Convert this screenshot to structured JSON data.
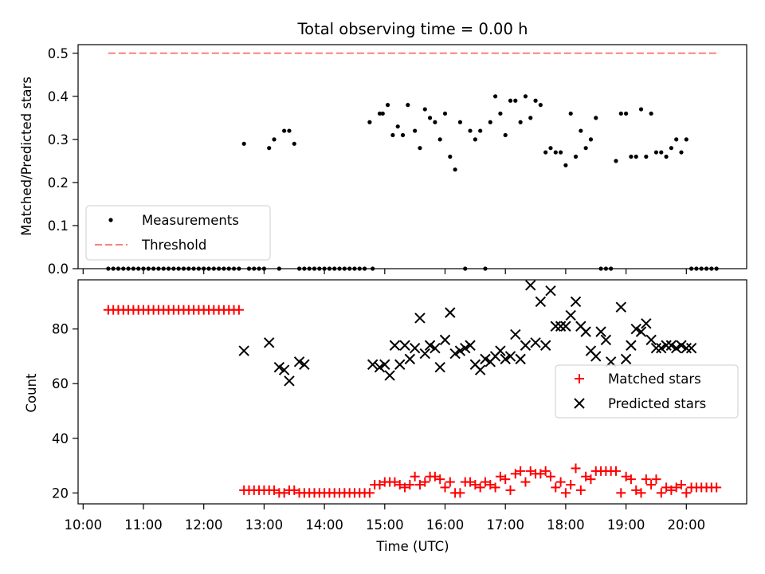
{
  "chart_data": [
    {
      "type": "scatter",
      "title": "Total observing time = 0.00 h",
      "ylabel": "Matched/Predicted stars",
      "ylim": [
        0,
        0.52
      ],
      "yticks": [
        "0.0",
        "0.1",
        "0.2",
        "0.3",
        "0.4",
        "0.5"
      ],
      "legend_position": "lower-left",
      "threshold": {
        "name": "Threshold",
        "value": 0.5,
        "x_start": "10:25",
        "x_end": "20:30",
        "color": "#ff7f7f",
        "style": "dashed"
      },
      "series": [
        {
          "name": "Measurements",
          "color": "#000000",
          "x": [
            "10:25",
            "10:30",
            "10:35",
            "10:40",
            "10:45",
            "10:50",
            "10:55",
            "11:00",
            "11:05",
            "11:10",
            "11:15",
            "11:20",
            "11:25",
            "11:30",
            "11:35",
            "11:40",
            "11:45",
            "11:50",
            "11:55",
            "12:00",
            "12:05",
            "12:10",
            "12:15",
            "12:20",
            "12:25",
            "12:30",
            "12:35",
            "12:40",
            "12:45",
            "12:50",
            "12:55",
            "13:00",
            "13:05",
            "13:10",
            "13:15",
            "13:20",
            "13:25",
            "13:30",
            "13:35",
            "13:40",
            "13:45",
            "13:50",
            "13:55",
            "14:00",
            "14:05",
            "14:10",
            "14:15",
            "14:20",
            "14:25",
            "14:30",
            "14:35",
            "14:40",
            "14:45",
            "14:48",
            "14:55",
            "14:58",
            "15:03",
            "15:08",
            "15:13",
            "15:18",
            "15:23",
            "15:30",
            "15:35",
            "15:40",
            "15:45",
            "15:50",
            "15:55",
            "16:00",
            "16:05",
            "16:10",
            "16:15",
            "16:20",
            "16:25",
            "16:30",
            "16:35",
            "16:40",
            "16:45",
            "16:50",
            "16:55",
            "17:00",
            "17:05",
            "17:10",
            "17:15",
            "17:20",
            "17:25",
            "17:30",
            "17:35",
            "17:40",
            "17:45",
            "17:50",
            "17:55",
            "18:00",
            "18:05",
            "18:10",
            "18:15",
            "18:20",
            "18:25",
            "18:30",
            "18:35",
            "18:40",
            "18:45",
            "18:50",
            "18:55",
            "19:00",
            "19:05",
            "19:10",
            "19:15",
            "19:20",
            "19:25",
            "19:30",
            "19:35",
            "19:40",
            "19:45",
            "19:50",
            "19:55",
            "20:00",
            "20:05",
            "20:10",
            "20:15",
            "20:20",
            "20:25",
            "20:30"
          ],
          "y": [
            0,
            0,
            0,
            0,
            0,
            0,
            0,
            0,
            0,
            0,
            0,
            0,
            0,
            0,
            0,
            0,
            0,
            0,
            0,
            0,
            0,
            0,
            0,
            0,
            0,
            0,
            0,
            0.29,
            0,
            0,
            0,
            0,
            0.28,
            0.3,
            0,
            0.32,
            0.32,
            0.29,
            0,
            0,
            0,
            0,
            0,
            0,
            0,
            0,
            0,
            0,
            0,
            0,
            0,
            0,
            0.34,
            0,
            0.36,
            0.36,
            0.38,
            0.31,
            0.33,
            0.31,
            0.38,
            0.32,
            0.28,
            0.37,
            0.35,
            0.34,
            0.3,
            0.36,
            0.26,
            0.23,
            0.34,
            0,
            0.32,
            0.3,
            0.32,
            0,
            0.34,
            0.4,
            0.36,
            0.31,
            0.39,
            0.39,
            0.34,
            0.4,
            0.35,
            0.39,
            0.38,
            0.27,
            0.28,
            0.27,
            0.27,
            0.24,
            0.36,
            0.26,
            0.32,
            0.28,
            0.3,
            0.35,
            0,
            0,
            0,
            0.25,
            0.36,
            0.36,
            0.26,
            0.26,
            0.37,
            0.26,
            0.36,
            0.27,
            0.27,
            0.26,
            0.28,
            0.3,
            0.27,
            0.3,
            0,
            0,
            0,
            0,
            0,
            0
          ]
        }
      ]
    },
    {
      "type": "scatter",
      "title": "",
      "xlabel": "Time (UTC)",
      "ylabel": "Count",
      "ylim": [
        16,
        98
      ],
      "yticks": [
        "20",
        "40",
        "60",
        "80"
      ],
      "xlim": [
        "09:55",
        "21:00"
      ],
      "xticks": [
        "10:00",
        "11:00",
        "12:00",
        "13:00",
        "14:00",
        "15:00",
        "16:00",
        "17:00",
        "18:00",
        "19:00",
        "20:00"
      ],
      "legend_position": "center-right",
      "series": [
        {
          "name": "Matched stars",
          "marker": "plus",
          "color": "#ff0000",
          "x": [
            "10:25",
            "10:30",
            "10:35",
            "10:40",
            "10:45",
            "10:50",
            "10:55",
            "11:00",
            "11:05",
            "11:10",
            "11:15",
            "11:20",
            "11:25",
            "11:30",
            "11:35",
            "11:40",
            "11:45",
            "11:50",
            "11:55",
            "12:00",
            "12:05",
            "12:10",
            "12:15",
            "12:20",
            "12:25",
            "12:30",
            "12:35",
            "12:40",
            "12:45",
            "12:50",
            "12:55",
            "13:00",
            "13:05",
            "13:10",
            "13:15",
            "13:20",
            "13:25",
            "13:30",
            "13:35",
            "13:40",
            "13:45",
            "13:50",
            "13:55",
            "14:00",
            "14:05",
            "14:10",
            "14:15",
            "14:20",
            "14:25",
            "14:30",
            "14:35",
            "14:40",
            "14:45",
            "14:50",
            "14:55",
            "15:00",
            "15:05",
            "15:10",
            "15:15",
            "15:20",
            "15:25",
            "15:30",
            "15:35",
            "15:40",
            "15:45",
            "15:50",
            "15:55",
            "16:00",
            "16:05",
            "16:10",
            "16:15",
            "16:20",
            "16:25",
            "16:30",
            "16:35",
            "16:40",
            "16:45",
            "16:50",
            "16:55",
            "17:00",
            "17:05",
            "17:10",
            "17:15",
            "17:20",
            "17:25",
            "17:30",
            "17:35",
            "17:40",
            "17:45",
            "17:50",
            "17:55",
            "18:00",
            "18:05",
            "18:10",
            "18:15",
            "18:20",
            "18:25",
            "18:30",
            "18:35",
            "18:40",
            "18:45",
            "18:50",
            "18:55",
            "19:00",
            "19:05",
            "19:10",
            "19:15",
            "19:20",
            "19:25",
            "19:30",
            "19:35",
            "19:40",
            "19:45",
            "19:50",
            "19:55",
            "20:00",
            "20:05",
            "20:10",
            "20:15",
            "20:20",
            "20:25",
            "20:30"
          ],
          "y": [
            87,
            87,
            87,
            87,
            87,
            87,
            87,
            87,
            87,
            87,
            87,
            87,
            87,
            87,
            87,
            87,
            87,
            87,
            87,
            87,
            87,
            87,
            87,
            87,
            87,
            87,
            87,
            21,
            21,
            21,
            21,
            21,
            21,
            21,
            20,
            20,
            21,
            21,
            20,
            20,
            20,
            20,
            20,
            20,
            20,
            20,
            20,
            20,
            20,
            20,
            20,
            20,
            20,
            23,
            23,
            24,
            24,
            24,
            23,
            22,
            23,
            26,
            23,
            24,
            26,
            26,
            25,
            22,
            24,
            20,
            20,
            24,
            24,
            23,
            22,
            24,
            23,
            22,
            26,
            25,
            21,
            27,
            28,
            24,
            28,
            27,
            27,
            28,
            26,
            22,
            24,
            20,
            23,
            29,
            21,
            26,
            25,
            28,
            28,
            28,
            28,
            28,
            20,
            26,
            25,
            21,
            20,
            25,
            23,
            25,
            20,
            22,
            21,
            22,
            23,
            20,
            22,
            22,
            22,
            22,
            22,
            22
          ]
        },
        {
          "name": "Predicted stars",
          "marker": "x",
          "color": "#000000",
          "x": [
            "12:40",
            "13:05",
            "13:15",
            "13:20",
            "13:25",
            "13:35",
            "13:40",
            "14:48",
            "14:55",
            "15:00",
            "15:05",
            "15:10",
            "15:15",
            "15:20",
            "15:25",
            "15:30",
            "15:35",
            "15:40",
            "15:45",
            "15:50",
            "15:55",
            "16:00",
            "16:05",
            "16:10",
            "16:15",
            "16:20",
            "16:25",
            "16:30",
            "16:35",
            "16:40",
            "16:45",
            "16:50",
            "16:55",
            "17:00",
            "17:05",
            "17:10",
            "17:15",
            "17:20",
            "17:25",
            "17:30",
            "17:35",
            "17:40",
            "17:45",
            "17:50",
            "17:55",
            "18:00",
            "18:05",
            "18:10",
            "18:15",
            "18:20",
            "18:25",
            "18:30",
            "18:35",
            "18:40",
            "18:45",
            "18:55",
            "19:00",
            "19:05",
            "19:10",
            "19:15",
            "19:20",
            "19:25",
            "19:30",
            "19:35",
            "19:40",
            "19:45",
            "19:50",
            "19:55",
            "20:00",
            "20:05"
          ],
          "y": [
            72,
            75,
            66,
            65,
            61,
            68,
            67,
            67,
            66,
            67,
            63,
            74,
            67,
            74,
            69,
            73,
            84,
            71,
            74,
            73,
            66,
            76,
            86,
            71,
            72,
            73,
            74,
            67,
            65,
            69,
            68,
            70,
            72,
            69,
            70,
            78,
            69,
            74,
            96,
            75,
            90,
            74,
            94,
            81,
            81,
            81,
            85,
            90,
            81,
            79,
            72,
            70,
            79,
            76,
            68,
            88,
            69,
            74,
            80,
            79,
            82,
            76,
            73,
            73,
            74,
            74,
            73,
            74,
            73,
            73
          ]
        }
      ]
    }
  ]
}
